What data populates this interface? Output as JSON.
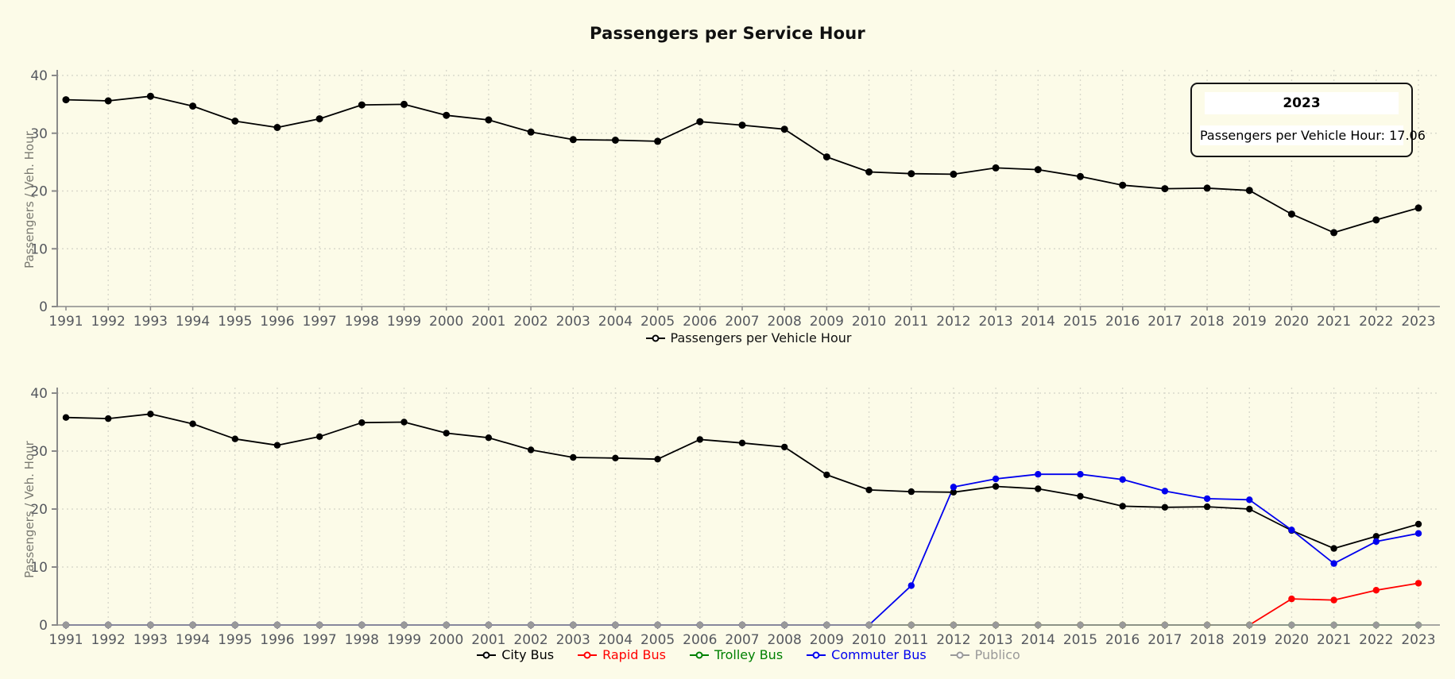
{
  "title": "Passengers per Service Hour",
  "tooltip": {
    "title": "2023",
    "value": "Passengers per Vehicle Hour: 17.06"
  },
  "colors": {
    "background": "#FCFBE8",
    "axis": "#8a8a8a",
    "grid": "#d9d9cc",
    "tick_text": "#55585f",
    "tooltip_border": "#141414"
  },
  "chart_data": [
    {
      "type": "line",
      "title": "Passengers per Service Hour",
      "xlabel": "",
      "ylabel": "Passengers / Veh. Hour",
      "ylim": [
        0,
        40
      ],
      "yticks": [
        0,
        10,
        20,
        30,
        40
      ],
      "grid": true,
      "legend_position": "bottom",
      "x": [
        1991,
        1992,
        1993,
        1994,
        1995,
        1996,
        1997,
        1998,
        1999,
        2000,
        2001,
        2002,
        2003,
        2004,
        2005,
        2006,
        2007,
        2008,
        2009,
        2010,
        2011,
        2012,
        2013,
        2014,
        2015,
        2016,
        2017,
        2018,
        2019,
        2020,
        2021,
        2022,
        2023
      ],
      "series": [
        {
          "name": "Passengers per Vehicle Hour",
          "color": "#000000",
          "values": [
            35.8,
            35.6,
            36.4,
            34.7,
            32.1,
            31.0,
            32.5,
            34.9,
            35.0,
            33.1,
            32.3,
            30.2,
            28.9,
            28.8,
            28.6,
            32.0,
            31.4,
            30.7,
            25.9,
            23.3,
            23.0,
            22.9,
            24.0,
            23.7,
            22.5,
            21.0,
            20.4,
            20.5,
            20.1,
            16.0,
            12.8,
            15.0,
            17.06
          ]
        }
      ]
    },
    {
      "type": "line",
      "title": "",
      "xlabel": "",
      "ylabel": "Passengers / Veh. Hour",
      "ylim": [
        0,
        40
      ],
      "yticks": [
        0,
        10,
        20,
        30,
        40
      ],
      "grid": true,
      "legend_position": "bottom",
      "x": [
        1991,
        1992,
        1993,
        1994,
        1995,
        1996,
        1997,
        1998,
        1999,
        2000,
        2001,
        2002,
        2003,
        2004,
        2005,
        2006,
        2007,
        2008,
        2009,
        2010,
        2011,
        2012,
        2013,
        2014,
        2015,
        2016,
        2017,
        2018,
        2019,
        2020,
        2021,
        2022,
        2023
      ],
      "series": [
        {
          "name": "City Bus",
          "color": "#000000",
          "values": [
            35.8,
            35.6,
            36.4,
            34.7,
            32.1,
            31.0,
            32.5,
            34.9,
            35.0,
            33.1,
            32.3,
            30.2,
            28.9,
            28.8,
            28.6,
            32.0,
            31.4,
            30.7,
            25.9,
            23.3,
            23.0,
            22.9,
            23.9,
            23.5,
            22.2,
            20.5,
            20.3,
            20.4,
            20.0,
            16.3,
            13.2,
            15.3,
            17.4
          ]
        },
        {
          "name": "Rapid Bus",
          "color": "#ff0000",
          "values": [
            0,
            0,
            0,
            0,
            0,
            0,
            0,
            0,
            0,
            0,
            0,
            0,
            0,
            0,
            0,
            0,
            0,
            0,
            0,
            0,
            0,
            0,
            0,
            0,
            0,
            0,
            0,
            0,
            0,
            4.5,
            4.3,
            6.0,
            7.2
          ]
        },
        {
          "name": "Trolley Bus",
          "color": "#008000",
          "values": [
            0,
            0,
            0,
            0,
            0,
            0,
            0,
            0,
            0,
            0,
            0,
            0,
            0,
            0,
            0,
            0,
            0,
            0,
            0,
            0,
            0,
            0,
            0,
            0,
            0,
            0,
            0,
            0,
            0,
            0,
            0,
            0,
            0
          ]
        },
        {
          "name": "Commuter Bus",
          "color": "#0000ee",
          "values": [
            0,
            0,
            0,
            0,
            0,
            0,
            0,
            0,
            0,
            0,
            0,
            0,
            0,
            0,
            0,
            0,
            0,
            0,
            0,
            0,
            6.8,
            23.8,
            25.2,
            26.0,
            26.0,
            25.1,
            23.1,
            21.8,
            21.6,
            16.4,
            10.6,
            14.4,
            15.8
          ]
        },
        {
          "name": "Publico",
          "color": "#999999",
          "values": [
            0,
            0,
            0,
            0,
            0,
            0,
            0,
            0,
            0,
            0,
            0,
            0,
            0,
            0,
            0,
            0,
            0,
            0,
            0,
            0,
            0,
            0,
            0,
            0,
            0,
            0,
            0,
            0,
            0,
            0,
            0,
            0,
            0
          ]
        }
      ]
    }
  ]
}
